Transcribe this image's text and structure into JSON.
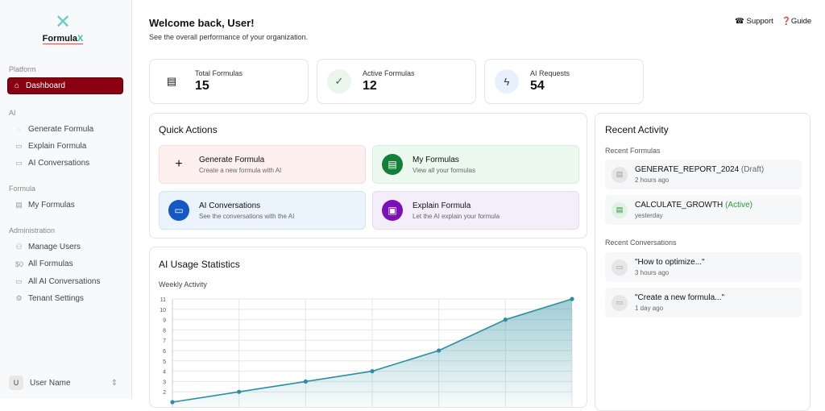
{
  "brand": {
    "name_a": "Formula",
    "name_b": "X"
  },
  "sidebar": {
    "sections": [
      {
        "label": "Platform",
        "items": [
          {
            "label": "Dashboard",
            "icon": "home-icon"
          }
        ]
      },
      {
        "label": "AI",
        "items": [
          {
            "label": "Generate Formula",
            "icon": "sparkle-chat-icon"
          },
          {
            "label": "Explain Formula",
            "icon": "chat-icon"
          },
          {
            "label": "AI Conversations",
            "icon": "chat-bubble-icon"
          }
        ]
      },
      {
        "label": "Formula",
        "items": [
          {
            "label": "My Formulas",
            "icon": "document-icon"
          }
        ]
      },
      {
        "label": "Administration",
        "items": [
          {
            "label": "Manage Users",
            "icon": "users-icon"
          },
          {
            "label": "All Formulas",
            "icon": "dollar-icon"
          },
          {
            "label": "All AI Conversations",
            "icon": "chat-icon"
          },
          {
            "label": "Tenant Settings",
            "icon": "gear-icon"
          }
        ]
      }
    ],
    "user": {
      "initial": "U",
      "name": "User Name"
    }
  },
  "header": {
    "title": "Welcome back, User!",
    "subtitle": "See the overall performance of your organization.",
    "support": "Support",
    "guide": "Guide"
  },
  "stats": [
    {
      "label": "Total Formulas",
      "value": "15",
      "icon": "document-icon"
    },
    {
      "label": "Active Formulas",
      "value": "12",
      "icon": "check-circle-icon"
    },
    {
      "label": "AI Requests",
      "value": "54",
      "icon": "lightning-icon"
    }
  ],
  "quick_actions": {
    "title": "Quick Actions",
    "items": [
      {
        "title": "Generate Formula",
        "desc": "Create a new formula with AI",
        "color": "#fdf0ee"
      },
      {
        "title": "My Formulas",
        "desc": "View all your formulas",
        "color": "#ebf9ee"
      },
      {
        "title": "AI Conversations",
        "desc": "See the conversations with the AI",
        "color": "#ebf3fc"
      },
      {
        "title": "Explain Formula",
        "desc": "Let the AI explain your formula",
        "color": "#f4eefb"
      }
    ]
  },
  "usage": {
    "title": "AI Usage Statistics",
    "subtitle": "Weekly Activity"
  },
  "chart_data": {
    "type": "area",
    "title": "Weekly Activity",
    "values": [
      1,
      2,
      3,
      4,
      6,
      9,
      11
    ],
    "yticks": [
      2,
      3,
      4,
      5,
      6,
      7,
      8,
      9,
      10,
      11
    ],
    "grid": true,
    "color": "#2a8fa0"
  },
  "recent": {
    "title": "Recent Activity",
    "formulas_label": "Recent Formulas",
    "formulas": [
      {
        "name": "GENERATE_REPORT_2024",
        "status": "(Draft)",
        "time": "2 hours ago"
      },
      {
        "name": "CALCULATE_GROWTH",
        "status": "(Active)",
        "time": "yesterday"
      }
    ],
    "conversations_label": "Recent Conversations",
    "conversations": [
      {
        "name": "\"How to optimize...\"",
        "time": "3 hours ago"
      },
      {
        "name": "\"Create a new formula...\"",
        "time": "1 day ago"
      }
    ]
  }
}
